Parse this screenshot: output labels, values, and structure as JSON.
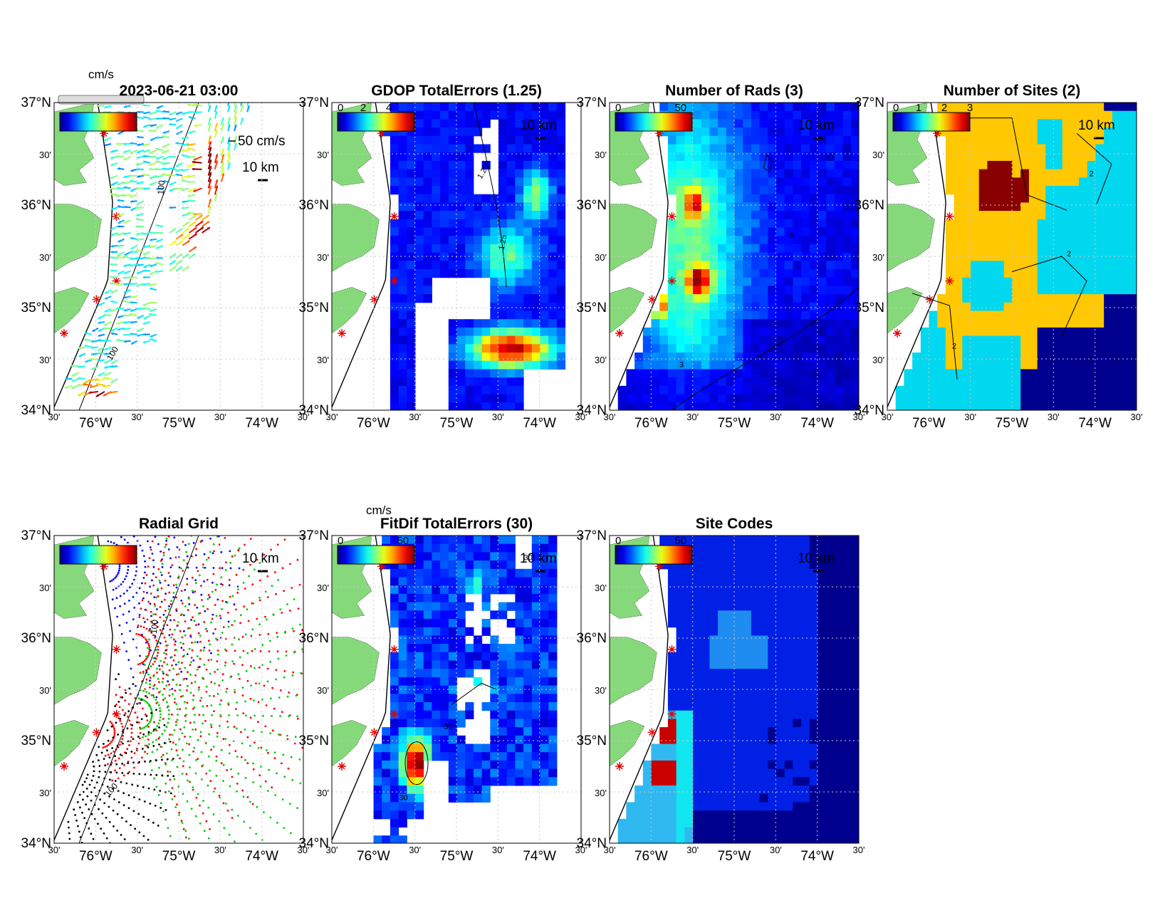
{
  "colors": {
    "land": "#86d97a",
    "water": "#ffffff",
    "coast": "#000000",
    "site": "#e00000",
    "grid": "#c8c8c8",
    "contour": "#000000"
  },
  "axes": {
    "lat_labels": [
      "37°N",
      "30'",
      "36°N",
      "30'",
      "35°N",
      "30'",
      "34°N"
    ],
    "lon_labels": [
      "30'",
      "76°W",
      "30'",
      "75°W",
      "30'",
      "74°W",
      "30'"
    ],
    "lat_range": [
      34,
      37
    ],
    "lon_range": [
      -76.5,
      -73.5
    ]
  },
  "scale_bar": "10 km",
  "panels": [
    {
      "id": "vectors",
      "title": "2023-06-21 03:00",
      "cbar_label": "cm/s",
      "cbar_ticks": [],
      "ref_vector": "50 cm/s",
      "contour_label": "100",
      "colormap": "jet",
      "range": [
        0,
        1
      ]
    },
    {
      "id": "gdop",
      "title": "GDOP TotalErrors (1.25)",
      "cbar_label": "",
      "cbar_ticks": [
        "0",
        "2",
        "4"
      ],
      "contour_label": "1.25",
      "colormap": "jet",
      "range": [
        0,
        1
      ]
    },
    {
      "id": "nrads",
      "title": "Number of Rads (3)",
      "cbar_label": "",
      "cbar_ticks": [
        "0",
        "50"
      ],
      "contour_label": "3",
      "colormap": "jet",
      "range": [
        0,
        1
      ]
    },
    {
      "id": "nsites",
      "title": "Number of Sites (2)",
      "cbar_label": "",
      "cbar_ticks": [
        "0",
        "1",
        "2",
        "3"
      ],
      "contour_label": "2",
      "colormap": "jet",
      "range": [
        0,
        1
      ]
    },
    {
      "id": "radgrid",
      "title": "Radial Grid",
      "cbar_label": "",
      "cbar_ticks": [],
      "contour_label": "100",
      "colormap": "jet",
      "range": [
        0,
        1
      ]
    },
    {
      "id": "fitdif",
      "title": "FitDif TotalErrors (30)",
      "cbar_label": "cm/s",
      "cbar_ticks": [
        "0",
        "50"
      ],
      "contour_label": "30",
      "colormap": "jet",
      "range": [
        0,
        1
      ]
    },
    {
      "id": "sitecodes",
      "title": "Site Codes",
      "cbar_label": "",
      "cbar_ticks": [
        "0",
        "50"
      ],
      "contour_label": "",
      "colormap": "jet",
      "range": [
        0,
        1
      ]
    }
  ]
}
